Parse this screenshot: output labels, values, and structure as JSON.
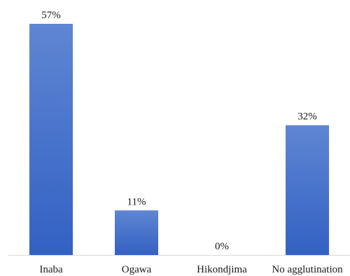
{
  "chart_data": {
    "type": "bar",
    "title": "",
    "xlabel": "",
    "ylabel": "",
    "categories": [
      "Inaba",
      "Ogawa",
      "Hikondjima",
      "No agglutination"
    ],
    "values": [
      57,
      11,
      0,
      32
    ],
    "data_labels": [
      "57%",
      "11%",
      "0%",
      "32%"
    ],
    "ylim": [
      0,
      57
    ],
    "grid": false,
    "legend": "none",
    "bar_color_top": "#5f86d3",
    "bar_color_bottom": "#3361c4",
    "baseline_color": "#d9d9d9"
  }
}
